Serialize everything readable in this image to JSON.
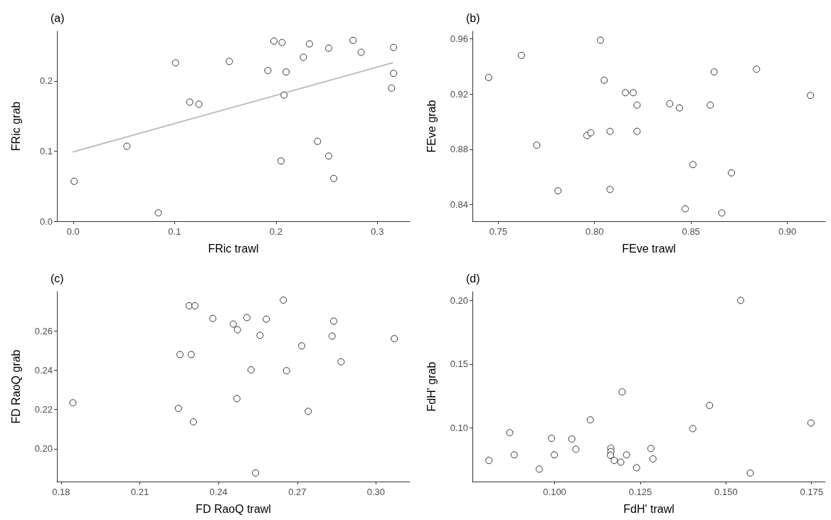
{
  "chart_data": [
    {
      "type": "scatter",
      "title": "(a)",
      "xlabel": "FRic trawl",
      "ylabel": "FRic grab",
      "xlim": [
        -0.016,
        0.332
      ],
      "ylim": [
        0,
        0.271
      ],
      "xticks": [
        {
          "value": 0,
          "label": "0.0"
        },
        0.1,
        0.2,
        0.3
      ],
      "yticks": [
        {
          "value": 0,
          "label": "0.0"
        },
        0.1,
        0.2
      ],
      "x": [
        0.001,
        0.053,
        0.084,
        0.101,
        0.115,
        0.124,
        0.154,
        0.192,
        0.198,
        0.206,
        0.21,
        0.208,
        0.205,
        0.227,
        0.233,
        0.241,
        0.252,
        0.252,
        0.257,
        0.276,
        0.284,
        0.316,
        0.316,
        0.314
      ],
      "series": [
        {
          "color": "#000000",
          "marker": "circle",
          "values": [
            0.057,
            0.107,
            0.012,
            0.226,
            0.17,
            0.167,
            0.228,
            0.215,
            0.257,
            0.255,
            0.213,
            0.18,
            0.086,
            0.234,
            0.253,
            0.114,
            0.247,
            0.093,
            0.061,
            0.258,
            0.241,
            0.248,
            0.211,
            0.19
          ]
        },
        {
          "type": "line",
          "color": "#bebebe",
          "x": [
            0.0,
            0.315
          ],
          "values": [
            0.099,
            0.226
          ]
        }
      ]
    },
    {
      "type": "scatter",
      "title": "(b)",
      "xlabel": "FEve trawl",
      "ylabel": "FEve grab",
      "marker": "circle",
      "xlim": [
        0.7366,
        0.9197
      ],
      "ylim": [
        0.828,
        0.9654
      ],
      "xticks": [
        0.75,
        {
          "value": 0.8,
          "label": "0.80"
        },
        0.85,
        {
          "value": 0.9,
          "label": "0.90"
        }
      ],
      "yticks": [
        0.84,
        0.88,
        0.92,
        0.96
      ],
      "x": [
        0.745,
        0.762,
        0.77,
        0.781,
        0.796,
        0.798,
        0.803,
        0.805,
        0.808,
        0.808,
        0.816,
        0.82,
        0.822,
        0.822,
        0.839,
        0.844,
        0.847,
        0.851,
        0.86,
        0.862,
        0.866,
        0.871,
        0.884,
        0.912
      ],
      "series": [
        {
          "color": "#000000",
          "values": [
            0.932,
            0.948,
            0.883,
            0.85,
            0.89,
            0.892,
            0.959,
            0.93,
            0.893,
            0.851,
            0.921,
            0.921,
            0.912,
            0.893,
            0.913,
            0.91,
            0.837,
            0.869,
            0.912,
            0.936,
            0.834,
            0.863,
            0.938,
            0.919
          ]
        }
      ]
    },
    {
      "type": "scatter",
      "title": "(c)",
      "xlabel": "FD RaoQ trawl",
      "ylabel": "FD RaoQ grab",
      "marker": "circle",
      "xlim": [
        0.1784,
        0.3129
      ],
      "ylim": [
        0.1833,
        0.2799
      ],
      "xticks": [
        0.18,
        0.21,
        0.24,
        0.27,
        {
          "value": 0.3,
          "label": "0.30"
        }
      ],
      "yticks": [
        {
          "value": 0.2,
          "label": "0.20"
        },
        0.22,
        0.24,
        0.26
      ],
      "x": [
        0.1845,
        0.2247,
        0.2253,
        0.2288,
        0.231,
        0.2296,
        0.2304,
        0.2378,
        0.2456,
        0.2472,
        0.247,
        0.2508,
        0.2524,
        0.2541,
        0.2558,
        0.2582,
        0.2647,
        0.2659,
        0.2717,
        0.2742,
        0.2833,
        0.2839,
        0.2867,
        0.307
      ],
      "series": [
        {
          "color": "#000000",
          "values": [
            0.2234,
            0.2205,
            0.2479,
            0.2727,
            0.2727,
            0.2479,
            0.2137,
            0.2663,
            0.2634,
            0.2605,
            0.2255,
            0.2667,
            0.2401,
            0.1877,
            0.2577,
            0.2659,
            0.2756,
            0.2397,
            0.2523,
            0.219,
            0.2573,
            0.2649,
            0.2442,
            0.256
          ]
        }
      ]
    },
    {
      "type": "scatter",
      "title": "(d)",
      "xlabel": "FdH' trawl",
      "ylabel": "FdH' grab",
      "marker": "circle",
      "xlim": [
        0.076,
        0.179
      ],
      "ylim": [
        0.0578,
        0.2069
      ],
      "xticks": [
        {
          "value": 0.1,
          "label": "0.100"
        },
        0.125,
        {
          "value": 0.15,
          "label": "0.150"
        },
        0.175
      ],
      "yticks": [
        {
          "value": 0.1,
          "label": "0.10"
        },
        0.15,
        {
          "value": 0.2,
          "label": "0.20"
        }
      ],
      "x": [
        0.0808,
        0.0869,
        0.0882,
        0.0955,
        0.0991,
        0.0999,
        0.105,
        0.1062,
        0.1104,
        0.1164,
        0.1164,
        0.1163,
        0.1174,
        0.1193,
        0.1197,
        0.121,
        0.1239,
        0.1281,
        0.1287,
        0.1403,
        0.1452,
        0.1543,
        0.1571,
        0.1748
      ],
      "series": [
        {
          "color": "#000000",
          "values": [
            0.0744,
            0.0962,
            0.0788,
            0.0676,
            0.0918,
            0.0788,
            0.0912,
            0.0832,
            0.1063,
            0.084,
            0.0813,
            0.0784,
            0.0744,
            0.0731,
            0.1282,
            0.0788,
            0.0687,
            0.0838,
            0.0756,
            0.0994,
            0.1176,
            0.2,
            0.0645,
            0.1038
          ]
        }
      ]
    }
  ]
}
